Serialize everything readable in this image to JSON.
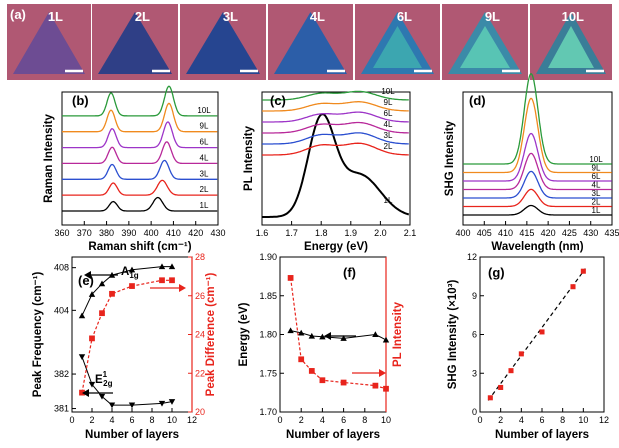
{
  "panel_a": {
    "panel_label": "(a)",
    "tiles": [
      {
        "label": "1L",
        "tri_color": "#6d4c93",
        "tri_inner": "#6d4c93"
      },
      {
        "label": "2L",
        "tri_color": "#2f3f86",
        "tri_inner": "#2f3f86"
      },
      {
        "label": "3L",
        "tri_color": "#264590",
        "tri_inner": "#264590"
      },
      {
        "label": "4L",
        "tri_color": "#2c5ea8",
        "tri_inner": "#2c5ea8"
      },
      {
        "label": "6L",
        "tri_color": "#2e78b0",
        "tri_inner": "#3ca6b0"
      },
      {
        "label": "9L",
        "tri_color": "#3b8aa8",
        "tri_inner": "#58c4b4"
      },
      {
        "label": "10L",
        "tri_color": "#3a7d98",
        "tri_inner": "#62c8b2"
      }
    ],
    "bg_color": "#b05873"
  },
  "chart_data": [
    {
      "panel": "(b)",
      "type": "line",
      "xlabel": "Raman shift (cm⁻¹)",
      "ylabel": "Raman Intensity",
      "xlim": [
        360,
        430
      ],
      "xticks": [
        360,
        370,
        380,
        390,
        400,
        410,
        420,
        430
      ],
      "series": [
        {
          "name": "1L",
          "color": "#000000",
          "peaks": [
            [
              383,
              0.35,
              1.8
            ],
            [
              403,
              0.5,
              2.2
            ]
          ]
        },
        {
          "name": "2L",
          "color": "#e8241c",
          "peaks": [
            [
              383,
              0.45,
              1.8
            ],
            [
              405,
              0.55,
              2.2
            ]
          ]
        },
        {
          "name": "3L",
          "color": "#2b4fd0",
          "peaks": [
            [
              382.5,
              0.55,
              1.8
            ],
            [
              406,
              0.7,
              2.0
            ]
          ]
        },
        {
          "name": "4L",
          "color": "#b8299a",
          "peaks": [
            [
              382.5,
              0.6,
              1.8
            ],
            [
              407,
              0.8,
              2.0
            ]
          ]
        },
        {
          "name": "6L",
          "color": "#9d35c8",
          "peaks": [
            [
              382.5,
              0.7,
              1.8
            ],
            [
              407.5,
              0.95,
              2.0
            ]
          ]
        },
        {
          "name": "9L",
          "color": "#f08a1e",
          "peaks": [
            [
              382,
              0.8,
              1.8
            ],
            [
              408,
              1.05,
              2.0
            ]
          ]
        },
        {
          "name": "10L",
          "color": "#2a9a3a",
          "peaks": [
            [
              382,
              0.85,
              1.8
            ],
            [
              408,
              1.1,
              2.0
            ]
          ]
        }
      ]
    },
    {
      "panel": "(c)",
      "type": "line",
      "xlabel": "Energy (eV)",
      "ylabel": "PL Intensity",
      "xlim": [
        1.6,
        2.1
      ],
      "xticks": [
        "1.6",
        "1.7",
        "1.8",
        "1.9",
        "2.0",
        "2.1"
      ],
      "series": [
        {
          "name": "1L",
          "color": "#000000"
        },
        {
          "name": "2L",
          "color": "#e8241c"
        },
        {
          "name": "3L",
          "color": "#2b4fd0"
        },
        {
          "name": "4L",
          "color": "#b8299a"
        },
        {
          "name": "6L",
          "color": "#9d35c8"
        },
        {
          "name": "9L",
          "color": "#f08a1e"
        },
        {
          "name": "10L",
          "color": "#2a9a3a"
        }
      ]
    },
    {
      "panel": "(d)",
      "type": "line",
      "xlabel": "Wavelength (nm)",
      "ylabel": "SHG Intensity",
      "xlim": [
        400,
        435
      ],
      "xticks": [
        400,
        405,
        410,
        415,
        420,
        425,
        430,
        435
      ],
      "peak_center": 416,
      "series": [
        {
          "name": "1L",
          "color": "#000000",
          "amp": 0.1
        },
        {
          "name": "2L",
          "color": "#e8241c",
          "amp": 0.18
        },
        {
          "name": "3L",
          "color": "#2b4fd0",
          "amp": 0.28
        },
        {
          "name": "4L",
          "color": "#b8299a",
          "amp": 0.38
        },
        {
          "name": "6L",
          "color": "#9d35c8",
          "amp": 0.5
        },
        {
          "name": "9L",
          "color": "#f08a1e",
          "amp": 0.78
        },
        {
          "name": "10L",
          "color": "#2a9a3a",
          "amp": 0.95
        }
      ]
    },
    {
      "panel": "(e)",
      "type": "scatter",
      "xlabel": "Number of layers",
      "ylabel_left": "Peak Frequency (cm⁻¹)",
      "ylabel_right": "Peak Difference (cm⁻¹)",
      "xlim": [
        0,
        12
      ],
      "xticks": [
        0,
        2,
        4,
        6,
        8,
        10,
        12
      ],
      "yticks_left_upper": [
        404,
        408
      ],
      "yticks_left_lower": [
        381,
        382
      ],
      "yticks_right": [
        20,
        22,
        24,
        26,
        28
      ],
      "ylim_right": [
        20,
        28
      ],
      "label_A": "A",
      "label_A_sub": "1g",
      "label_E": "E",
      "label_E_sup": "1",
      "label_E_sub": "2g",
      "A1g": {
        "x": [
          1,
          2,
          3,
          4,
          6,
          9,
          10
        ],
        "y": [
          403.5,
          405.5,
          406.5,
          407.3,
          407.8,
          408.1,
          408.1
        ],
        "ylim": [
          401.5,
          409
        ]
      },
      "E2g": {
        "x": [
          1,
          2,
          3,
          4,
          6,
          9,
          10
        ],
        "y": [
          382.5,
          381.7,
          381.35,
          381.1,
          381.1,
          381.15,
          381.2
        ],
        "ylim": [
          380.9,
          382.9
        ]
      },
      "diff": {
        "x": [
          1,
          2,
          3,
          4,
          6,
          9,
          10
        ],
        "y": [
          21.0,
          23.8,
          25.1,
          26.1,
          26.5,
          26.8,
          26.8
        ],
        "color": "#e8241c"
      }
    },
    {
      "panel": "(f)",
      "type": "scatter",
      "xlabel": "Number of layers",
      "ylabel_left": "Energy (eV)",
      "ylabel_right": "PL Intensity",
      "xlim": [
        0,
        10
      ],
      "xticks": [
        0,
        2,
        4,
        6,
        8,
        10
      ],
      "ylim": [
        1.7,
        1.9
      ],
      "yticks": [
        "1.70",
        "1.75",
        "1.80",
        "1.85",
        "1.90"
      ],
      "energy": {
        "x": [
          1,
          2,
          3,
          4,
          6,
          9,
          10
        ],
        "y": [
          1.805,
          1.802,
          1.798,
          1.797,
          1.795,
          1.8,
          1.793
        ]
      },
      "pl": {
        "x": [
          1,
          2,
          3,
          4,
          6,
          9,
          10
        ],
        "y": [
          1.873,
          1.768,
          1.753,
          1.741,
          1.738,
          1.734,
          1.73
        ],
        "color": "#e8241c"
      }
    },
    {
      "panel": "(g)",
      "type": "scatter",
      "xlabel": "Number of layers",
      "ylabel": "SHG Intensity (×10³)",
      "xlim": [
        0,
        12
      ],
      "xticks": [
        0,
        2,
        4,
        6,
        8,
        10,
        12
      ],
      "ylim": [
        0,
        12
      ],
      "yticks": [
        0,
        3,
        6,
        9,
        12
      ],
      "points": {
        "x": [
          1,
          2,
          3,
          4,
          6,
          9,
          10
        ],
        "y": [
          1.1,
          1.9,
          3.2,
          4.5,
          6.2,
          9.7,
          10.9
        ],
        "color": "#e8241c"
      }
    }
  ]
}
